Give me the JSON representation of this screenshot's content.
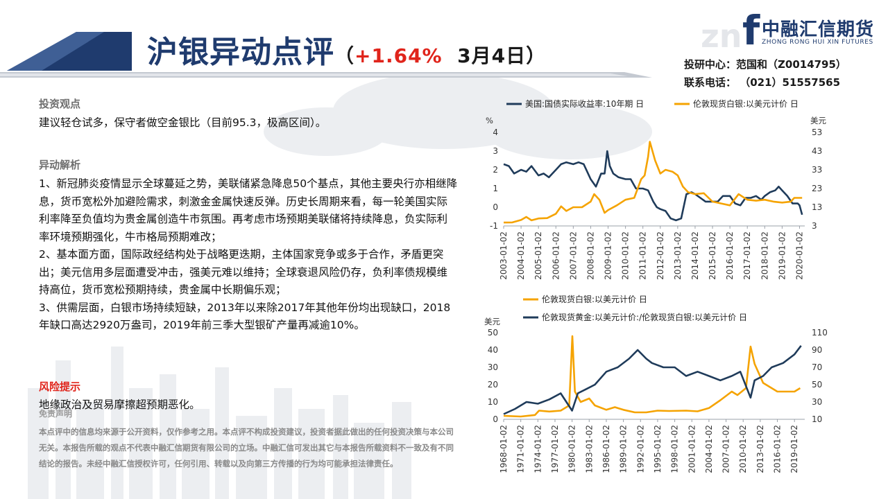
{
  "header": {
    "title_part1": "沪银",
    "title_part2": "异动点评",
    "subtitle_open": "（",
    "pct": "+1.64%",
    "date_month": "3月",
    "date_day": "4",
    "date_suffix": "日）"
  },
  "brand": {
    "name_cn": "中融汇信期货",
    "name_en": "ZHONG RONG HUI XIN FUTURES",
    "logo_mark": "f",
    "logo_watermark": "zn",
    "accent": "#1f3b6e",
    "highlight": "#e0241b"
  },
  "contact": {
    "research": "投研中心：范国和（Z0014795）",
    "phone": "联系电话：  （021）51557565"
  },
  "sections": {
    "view_title": "投资观点",
    "view_text": "建议轻仓试多，保守者做空金银比（目前95.3，极高区间）。",
    "analysis_title": "异动解析",
    "analysis_p1": "1、新冠肺炎疫情显示全球蔓延之势，美联储紧急降息50个基点，其他主要央行亦相继降息，货币宽松外加避险需求，刺激金金属快速反弹。历史长周期来看，每一轮美国实际利率降至负值均为贵金属创造牛市氛围。再考虑市场预期美联储将持续降息，负实际利率环境预期强化，牛市格局预期难改；",
    "analysis_p2": "2、基本面方面，国际政经结构处于战略更迭期，主体国家竞争或多于合作，矛盾更突出；美元信用多层面遭受冲击，强美元难以维持；全球衰退风险仍存，负利率债规模维持高位，货币宽松预期持续，贵金属中长期偏乐观；",
    "analysis_p3": "3、供需层面，白银市场持续短缺，2013年以来除2017年其他年份均出现缺口，2018年缺口高达2920万盎司，2019年前三季大型银矿产量再减逾10%。",
    "risk_title": "风险提示",
    "risk_text": "地缘政治及贸易摩擦超预期恶化。",
    "disclaimer_title": "免责声明",
    "disclaimer_text": "本点评中的信息均来源于公开资料，仅作参考之用。本点评不构成投资建议，投资者据此做出的任何投资决策与本公司无关。本报告所载的观点不代表中融汇信期货有限公司的立场。中融汇信可发出其它与本报告所载资料不一致及有不同结论的报告。未经中融汇信授权许可，任何引用、转载以及向第三方传播的行为均可能承担法律责任。"
  },
  "chart_data": [
    {
      "type": "line",
      "legend_position": "top",
      "left_unit": "%",
      "right_unit": "美元",
      "left_ylim": [
        -1,
        4
      ],
      "left_ticks": [
        "4",
        "3",
        "2",
        "1",
        "0",
        "-1"
      ],
      "right_ylim": [
        3,
        53
      ],
      "right_ticks": [
        "53",
        "43",
        "33",
        "23",
        "13",
        "3"
      ],
      "x_labels": [
        "2003-01-02",
        "2004-01-02",
        "2005-01-02",
        "2006-01-02",
        "2007-01-02",
        "2008-01-02",
        "2009-01-02",
        "2010-01-02",
        "2011-01-02",
        "2012-01-02",
        "2013-01-02",
        "2014-01-02",
        "2015-01-02",
        "2016-01-02",
        "2017-01-02",
        "2018-01-02",
        "2019-01-02",
        "2020-01-02"
      ],
      "series": [
        {
          "name": "美国:国债实际收益率:10年期 日",
          "axis": "left",
          "color": "#1f3b5a",
          "x": [
            2003.0,
            2003.3,
            2003.6,
            2004.0,
            2004.3,
            2004.6,
            2005.0,
            2005.3,
            2005.6,
            2006.0,
            2006.3,
            2006.6,
            2007.0,
            2007.3,
            2007.6,
            2008.0,
            2008.3,
            2008.6,
            2008.8,
            2008.95,
            2009.1,
            2009.3,
            2009.6,
            2010.0,
            2010.3,
            2010.6,
            2011.0,
            2011.3,
            2011.6,
            2011.8,
            2012.0,
            2012.3,
            2012.6,
            2012.9,
            2013.2,
            2013.5,
            2013.8,
            2014.0,
            2014.3,
            2014.6,
            2015.0,
            2015.3,
            2015.6,
            2016.0,
            2016.3,
            2016.6,
            2016.9,
            2017.2,
            2017.5,
            2017.8,
            2018.0,
            2018.3,
            2018.6,
            2018.8,
            2019.0,
            2019.3,
            2019.6,
            2019.9,
            2020.0,
            2020.15
          ],
          "values": [
            2.3,
            2.2,
            1.8,
            2.0,
            1.9,
            2.2,
            1.7,
            1.8,
            1.6,
            2.0,
            2.3,
            2.4,
            2.3,
            2.4,
            2.3,
            1.5,
            1.1,
            1.8,
            1.8,
            3.0,
            2.2,
            1.8,
            1.6,
            1.5,
            1.5,
            1.0,
            1.0,
            0.9,
            0.3,
            0.0,
            -0.1,
            -0.2,
            -0.6,
            -0.7,
            -0.6,
            0.7,
            0.8,
            0.7,
            0.5,
            0.3,
            0.3,
            0.3,
            0.6,
            0.6,
            0.2,
            0.1,
            0.5,
            0.5,
            0.6,
            0.4,
            0.6,
            0.8,
            0.9,
            1.1,
            0.9,
            0.6,
            0.2,
            0.2,
            0.1,
            -0.4
          ]
        },
        {
          "name": "伦敦现货白银:以美元计价 日",
          "axis": "right",
          "color": "#f5a300",
          "x": [
            2003.0,
            2003.5,
            2004.0,
            2004.3,
            2004.6,
            2005.0,
            2005.5,
            2006.0,
            2006.3,
            2006.6,
            2007.0,
            2007.5,
            2008.0,
            2008.2,
            2008.5,
            2008.8,
            2009.0,
            2009.5,
            2010.0,
            2010.5,
            2010.9,
            2011.1,
            2011.3,
            2011.4,
            2011.7,
            2012.0,
            2012.3,
            2012.7,
            2013.0,
            2013.3,
            2013.6,
            2014.0,
            2014.5,
            2015.0,
            2015.5,
            2016.0,
            2016.5,
            2017.0,
            2017.5,
            2018.0,
            2018.5,
            2019.0,
            2019.5,
            2019.7,
            2020.0,
            2020.15
          ],
          "values": [
            4.8,
            4.9,
            6.2,
            7.8,
            6.0,
            7.0,
            7.2,
            9.5,
            13.5,
            11.0,
            13.0,
            13.0,
            16.0,
            20.0,
            17.0,
            10.0,
            11.5,
            14.0,
            17.0,
            18.0,
            28.0,
            30.0,
            40.0,
            48.0,
            38.0,
            31.0,
            33.0,
            32.0,
            30.0,
            24.0,
            21.0,
            20.0,
            20.5,
            16.0,
            15.0,
            14.0,
            20.0,
            17.0,
            16.5,
            17.0,
            16.0,
            15.5,
            16.0,
            18.0,
            18.0,
            18.0
          ]
        }
      ]
    },
    {
      "type": "line",
      "legend_position": "top",
      "left_unit": "美元",
      "left_ylim": [
        0,
        50
      ],
      "left_ticks": [
        "50",
        "40",
        "30",
        "20",
        "10",
        "0"
      ],
      "right_ylim": [
        10,
        110
      ],
      "right_ticks": [
        "110",
        "90",
        "70",
        "50",
        "30",
        "10"
      ],
      "x_labels": [
        "1968-01-02",
        "1971-01-02",
        "1974-01-02",
        "1977-01-02",
        "1980-01-02",
        "1983-01-02",
        "1986-01-02",
        "1989-01-02",
        "1992-01-02",
        "1995-01-02",
        "1998-01-02",
        "2001-01-02",
        "2004-01-02",
        "2007-01-02",
        "2010-01-02",
        "2013-01-02",
        "2016-01-02",
        "2019-01-02"
      ],
      "series": [
        {
          "name": "伦敦现货白银:以美元计价 日",
          "axis": "left",
          "color": "#f5a300",
          "x": [
            1968.0,
            1971.0,
            1973.5,
            1974.2,
            1976.0,
            1978.0,
            1979.5,
            1980.05,
            1980.5,
            1981.5,
            1983.0,
            1984.0,
            1986.0,
            1987.5,
            1989.0,
            1991.0,
            1993.0,
            1995.0,
            1997.0,
            2000.0,
            2002.0,
            2004.0,
            2006.0,
            2008.0,
            2009.0,
            2010.5,
            2011.3,
            2012.0,
            2013.5,
            2016.0,
            2019.0,
            2020.0
          ],
          "values": [
            2.0,
            1.6,
            2.5,
            5.0,
            4.5,
            5.0,
            8.0,
            48.0,
            16.0,
            10.0,
            12.0,
            8.0,
            5.5,
            7.0,
            5.5,
            4.0,
            4.0,
            5.0,
            4.8,
            5.0,
            4.6,
            6.5,
            11.0,
            16.0,
            14.0,
            18.0,
            42.0,
            32.0,
            21.0,
            16.0,
            16.0,
            18.0
          ]
        },
        {
          "name": "伦敦现货黄金:以美元计价:/伦敦现货白银:以美元计价 日",
          "axis": "right",
          "color": "#1f3b5a",
          "x": [
            1968.0,
            1970.0,
            1972.0,
            1974.0,
            1976.0,
            1978.0,
            1980.0,
            1981.0,
            1982.5,
            1984.0,
            1986.0,
            1988.0,
            1990.0,
            1991.5,
            1993.0,
            1994.0,
            1996.0,
            1998.0,
            2000.0,
            2002.0,
            2004.0,
            2006.0,
            2008.0,
            2009.5,
            2011.3,
            2012.0,
            2013.5,
            2015.0,
            2017.0,
            2019.0,
            2020.15
          ],
          "values": [
            16.0,
            22.0,
            30.0,
            28.0,
            33.0,
            40.0,
            20.0,
            40.0,
            45.0,
            50.0,
            65.0,
            70.0,
            80.0,
            90.0,
            80.0,
            75.0,
            70.0,
            70.0,
            60.0,
            65.0,
            60.0,
            55.0,
            60.0,
            65.0,
            35.0,
            55.0,
            60.0,
            70.0,
            75.0,
            85.0,
            95.0
          ]
        }
      ]
    }
  ]
}
